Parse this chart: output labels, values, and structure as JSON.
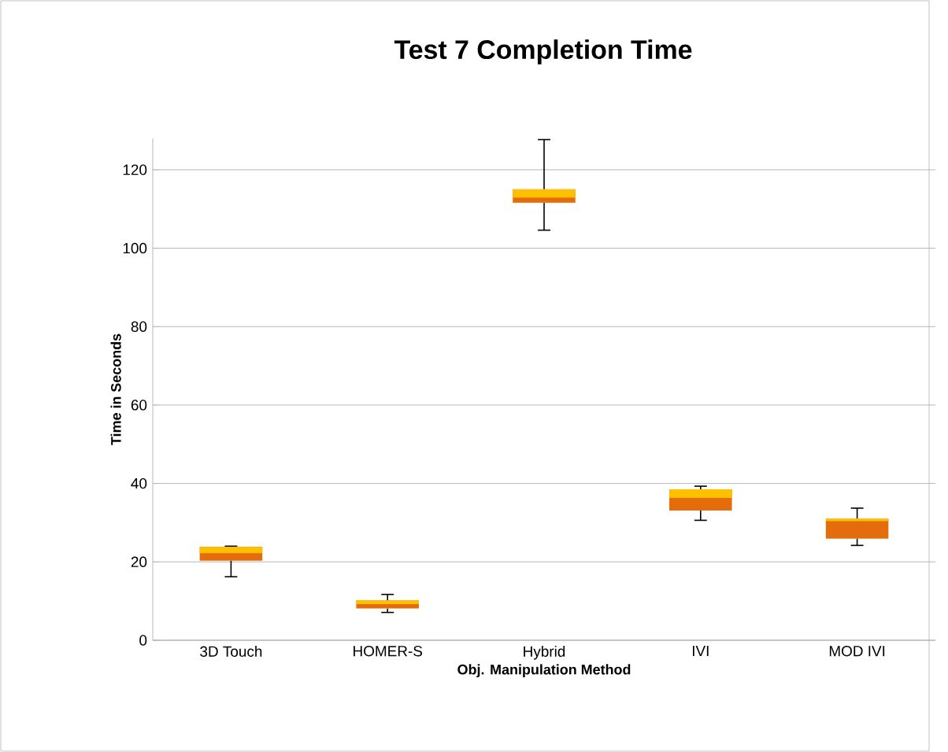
{
  "chart_data": {
    "type": "box",
    "title": "Test 7 Completion Time",
    "xlabel": "Obj. Manipulation Method",
    "ylabel": "Time in Seconds",
    "categories": [
      "3D Touch",
      "HOMER-S",
      "Hybrid",
      "IVI",
      "MOD IVI"
    ],
    "series": [
      {
        "color": "#ffc000",
        "colors": [
          "#e46c0a",
          "#e46c0a",
          "#e46c0a",
          "#e46c0a",
          "#e46c0a"
        ],
        "boxes": [
          {
            "low": 16.2,
            "q1": 20.3,
            "median": 22.2,
            "q3": 23.8,
            "high": 24
          },
          {
            "low": 7.1,
            "q1": 8.1,
            "median": 9.2,
            "q3": 10.2,
            "high": 11.7
          },
          {
            "low": 104.6,
            "q1": 111.6,
            "median": 112.9,
            "q3": 115,
            "high": 127.7
          },
          {
            "low": 30.6,
            "q1": 33.1,
            "median": 36.3,
            "q3": 38.5,
            "high": 39.3
          },
          {
            "low": 24.2,
            "q1": 25.9,
            "median": 30.4,
            "q3": 31,
            "high": 33.7
          }
        ]
      }
    ],
    "ylim": [
      0,
      128
    ],
    "yticks": [
      0,
      20,
      40,
      60,
      80,
      100,
      120
    ],
    "grid": "y"
  }
}
